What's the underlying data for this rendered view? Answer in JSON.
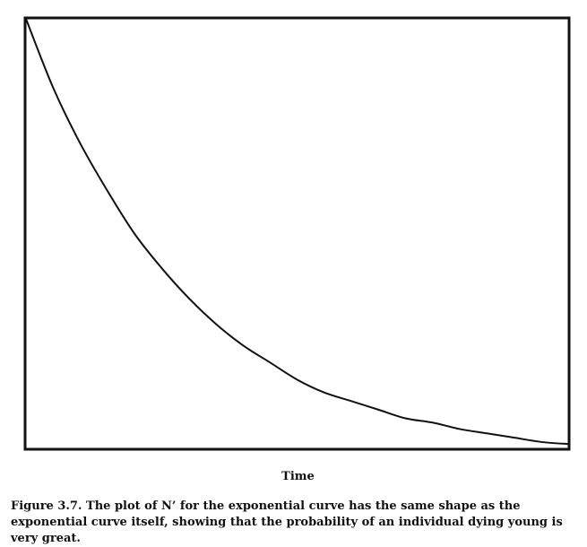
{
  "chart_data": {
    "type": "line",
    "title": "",
    "xlabel": "Time",
    "ylabel": "",
    "grid": false,
    "legend": "none",
    "xlim": [
      0,
      1
    ],
    "ylim": [
      0,
      1
    ],
    "series": [
      {
        "values": [
          {
            "x": 0.0,
            "y": 1.0
          },
          {
            "x": 0.05,
            "y": 0.84
          },
          {
            "x": 0.1,
            "y": 0.71
          },
          {
            "x": 0.15,
            "y": 0.6
          },
          {
            "x": 0.2,
            "y": 0.5
          },
          {
            "x": 0.25,
            "y": 0.42
          },
          {
            "x": 0.3,
            "y": 0.35
          },
          {
            "x": 0.35,
            "y": 0.29
          },
          {
            "x": 0.4,
            "y": 0.24
          },
          {
            "x": 0.45,
            "y": 0.2
          },
          {
            "x": 0.5,
            "y": 0.16
          },
          {
            "x": 0.55,
            "y": 0.13
          },
          {
            "x": 0.6,
            "y": 0.11
          },
          {
            "x": 0.65,
            "y": 0.09
          },
          {
            "x": 0.7,
            "y": 0.07
          },
          {
            "x": 0.75,
            "y": 0.06
          },
          {
            "x": 0.8,
            "y": 0.045
          },
          {
            "x": 0.85,
            "y": 0.035
          },
          {
            "x": 0.9,
            "y": 0.025
          },
          {
            "x": 0.95,
            "y": 0.015
          },
          {
            "x": 1.0,
            "y": 0.01
          }
        ]
      }
    ]
  },
  "caption": "Figure 3.7. The plot of N’ for the exponential curve has the same shape as the exponential curve itself, showing that the probability of an individual dying young is very great.",
  "colors": {
    "line": "#111111",
    "frame": "#111111",
    "background": "#ffffff"
  }
}
